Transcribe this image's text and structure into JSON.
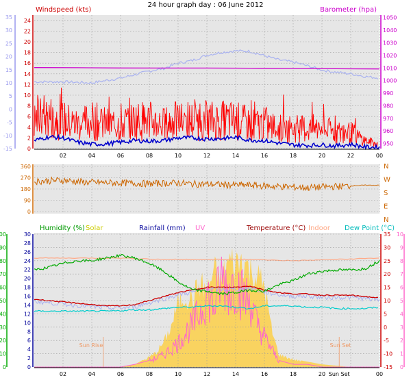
{
  "title": "24 hour graph day : 06 June 2012",
  "x_ticks": [
    "02",
    "04",
    "06",
    "08",
    "10",
    "12",
    "14",
    "16",
    "18",
    "20",
    "22",
    "00"
  ],
  "x_ticks_bottom": [
    "02",
    "04",
    "06",
    "08",
    "10",
    "12",
    "14",
    "16",
    "18",
    "20",
    "Sun Set",
    "00"
  ],
  "colors": {
    "wind": "#ff0000",
    "gust": "#ff0000",
    "avg": "#0000cc",
    "wind_axis": "#9999ee",
    "baro": "#cc00cc",
    "dir": "#cc6600",
    "humidity": "#00aa00",
    "solar": "#ffcc33",
    "rain": "#000099",
    "uv": "#ff66cc",
    "temp": "#cc0000",
    "indoor": "#ffaa88",
    "dew": "#00cccc",
    "bg": "#e6e6e6"
  },
  "chart_data": [
    {
      "type": "line",
      "panel": "wind-baro",
      "left_axis_outer": {
        "ticks": [
          35,
          30,
          25,
          20,
          15,
          10,
          5,
          0,
          -5,
          -10,
          -15
        ]
      },
      "left_axis": {
        "label": "Windspeed (kts)",
        "ticks": [
          24,
          22,
          20,
          18,
          16,
          14,
          12,
          10,
          8,
          6,
          4,
          2,
          0
        ],
        "ylim": [
          0,
          25
        ]
      },
      "right_axis": {
        "label": "Barometer (hpa)",
        "ticks": [
          1050,
          1040,
          1030,
          1020,
          1010,
          1000,
          990,
          980,
          970,
          960,
          950
        ],
        "ylim": [
          946,
          1052
        ]
      },
      "series": [
        {
          "id": "gust",
          "x": [
            0,
            1,
            2,
            3,
            4,
            5,
            6,
            7,
            8,
            9,
            10,
            11,
            12,
            13,
            14,
            15,
            16,
            17,
            18,
            19,
            20,
            21,
            22,
            23,
            24
          ],
          "y": [
            7,
            8,
            7,
            6,
            7,
            6,
            6,
            7,
            7,
            6,
            7,
            7,
            7,
            7,
            7,
            6,
            6,
            5,
            5,
            5,
            5,
            4,
            4,
            2,
            1
          ]
        },
        {
          "id": "avg",
          "x": [
            0,
            1,
            2,
            3,
            4,
            5,
            6,
            7,
            8,
            9,
            10,
            11,
            12,
            13,
            14,
            15,
            16,
            17,
            18,
            19,
            20,
            21,
            22,
            23,
            24
          ],
          "y": [
            1.5,
            2.2,
            2.0,
            1.2,
            0.8,
            0.9,
            1.2,
            1.5,
            1.4,
            1.5,
            2.0,
            2.0,
            1.8,
            1.9,
            2.1,
            1.6,
            1.5,
            1.0,
            0.7,
            0.6,
            0.7,
            0.5,
            0.8,
            0.3,
            0.2
          ]
        },
        {
          "id": "barometer",
          "x": [
            0,
            3,
            6,
            9,
            12,
            15,
            18,
            21,
            24
          ],
          "y": [
            1010.3,
            1010.2,
            1010,
            1009.9,
            1009.9,
            1009.8,
            1009.6,
            1009.4,
            1009.2
          ]
        },
        {
          "id": "indoor-band",
          "x": [
            0,
            2,
            4,
            6,
            8,
            9,
            10,
            11,
            12,
            13,
            14,
            15,
            16,
            17,
            18,
            19,
            20,
            21,
            22,
            23,
            24
          ],
          "y": [
            12.5,
            12.5,
            12.3,
            13.2,
            14.5,
            15.0,
            16.0,
            16.5,
            17.5,
            18.0,
            18.3,
            18.2,
            17.4,
            16.6,
            16.2,
            15.5,
            14.7,
            14.3,
            14.0,
            13.5,
            13.2
          ]
        }
      ]
    },
    {
      "type": "line",
      "panel": "wind-direction",
      "left_axis": {
        "ticks": [
          360,
          270,
          180,
          90,
          0
        ],
        "ylim": [
          0,
          360
        ]
      },
      "right_axis": {
        "ticks": [
          "N",
          "W",
          "S",
          "E",
          "N"
        ]
      },
      "series": [
        {
          "id": "direction",
          "x": [
            0,
            1,
            2,
            3,
            4,
            5,
            6,
            7,
            8,
            9,
            10,
            11,
            12,
            13,
            14,
            15,
            16,
            17,
            18,
            19,
            20,
            21,
            22,
            23,
            24
          ],
          "y": [
            240,
            245,
            250,
            238,
            232,
            230,
            228,
            225,
            222,
            225,
            228,
            220,
            218,
            215,
            212,
            210,
            205,
            200,
            195,
            190,
            195,
            200,
            205,
            210,
            210
          ]
        }
      ]
    },
    {
      "type": "line",
      "panel": "humidity-temp",
      "labels": {
        "humidity": "Humidity (%)",
        "solar": "Solar",
        "rain": "Rainfall (mm)",
        "uv": "UV",
        "temp": "Temperature (°C)",
        "indoor": "Indoor",
        "dew": "Dew Point (°C)"
      },
      "annotations": {
        "sunrise": "Sun Rise",
        "sunset": "Sun Set"
      },
      "axis_humidity": {
        "ticks": [
          100,
          90,
          80,
          70,
          60,
          50,
          40,
          30,
          20,
          10,
          0
        ]
      },
      "axis_rain": {
        "ticks": [
          30,
          28,
          26,
          24,
          22,
          20,
          18,
          16,
          14,
          12,
          10,
          8,
          6,
          4,
          2,
          0
        ]
      },
      "axis_temp": {
        "ticks": [
          35,
          30,
          25,
          20,
          15,
          10,
          5,
          0,
          -5,
          -10,
          -15
        ],
        "ylim": [
          -15,
          35
        ]
      },
      "axis_uv": {
        "ticks": [
          10,
          9,
          8,
          7,
          6,
          5,
          4,
          3,
          2,
          1,
          0
        ]
      },
      "series": [
        {
          "id": "humidity",
          "x": [
            0,
            1,
            2,
            3,
            4,
            5,
            6,
            7,
            8,
            9,
            10,
            11,
            12,
            13,
            14,
            15,
            16,
            17,
            18,
            19,
            20,
            21,
            22,
            23,
            24
          ],
          "y": [
            73,
            75,
            78,
            80,
            80,
            82,
            84,
            82,
            78,
            72,
            64,
            58,
            57,
            55,
            56,
            58,
            57,
            62,
            65,
            70,
            72,
            73,
            73,
            74,
            80
          ]
        },
        {
          "id": "temperature",
          "x": [
            0,
            1,
            2,
            3,
            4,
            5,
            6,
            7,
            8,
            9,
            10,
            11,
            12,
            13,
            14,
            15,
            16,
            17,
            18,
            19,
            20,
            21,
            22,
            23,
            24
          ],
          "y": [
            10.5,
            10,
            9.5,
            9,
            8.5,
            8,
            8,
            8.5,
            10,
            11.5,
            13,
            14,
            15,
            15,
            15,
            15.5,
            14,
            13,
            12.5,
            12.5,
            12,
            12,
            12,
            11.5,
            11
          ]
        },
        {
          "id": "indoor",
          "x": [
            0,
            3,
            6,
            9,
            12,
            15,
            18,
            21,
            24
          ],
          "y": [
            26,
            26,
            26,
            25.5,
            25.5,
            25.5,
            25,
            25.5,
            26
          ]
        },
        {
          "id": "dewpoint",
          "x": [
            0,
            1,
            2,
            3,
            4,
            5,
            6,
            7,
            8,
            9,
            10,
            11,
            12,
            13,
            14,
            15,
            16,
            17,
            18,
            19,
            20,
            21,
            22,
            23,
            24
          ],
          "y": [
            6,
            6,
            6,
            6,
            6,
            6,
            6.2,
            6.5,
            6.5,
            7,
            7.5,
            7.5,
            8,
            8,
            7.5,
            7,
            8,
            8,
            8,
            7.5,
            7.5,
            7,
            7,
            7,
            7.5
          ]
        },
        {
          "id": "solar",
          "x": [
            0,
            4,
            5,
            6,
            7,
            7.5,
            8,
            8.5,
            9,
            9.5,
            10,
            10.5,
            11,
            11.5,
            12,
            12.5,
            13,
            13.5,
            14,
            14.5,
            15,
            15.5,
            16,
            16.5,
            17,
            18,
            19,
            20,
            21,
            22,
            24
          ],
          "y": [
            0,
            0,
            0,
            0,
            2,
            5,
            8,
            12,
            20,
            32,
            52,
            58,
            55,
            68,
            62,
            78,
            70,
            86,
            84,
            88,
            78,
            74,
            66,
            30,
            10,
            6,
            4,
            2,
            1,
            0,
            0
          ]
        },
        {
          "id": "uv",
          "x": [
            0,
            6,
            7,
            8,
            9,
            9.5,
            10,
            10.5,
            11,
            11.5,
            12,
            12.5,
            13,
            13.5,
            14,
            14.5,
            15,
            15.5,
            16,
            16.5,
            17,
            18,
            19,
            20,
            24
          ],
          "y": [
            0,
            0,
            0.2,
            0.5,
            1.0,
            1.5,
            2.0,
            2.8,
            3.5,
            4.5,
            6.0,
            5.0,
            7.5,
            6.5,
            7.0,
            6.0,
            5.5,
            3.5,
            2.5,
            1.5,
            0.5,
            0.2,
            0.2,
            0,
            0
          ]
        }
      ]
    }
  ]
}
